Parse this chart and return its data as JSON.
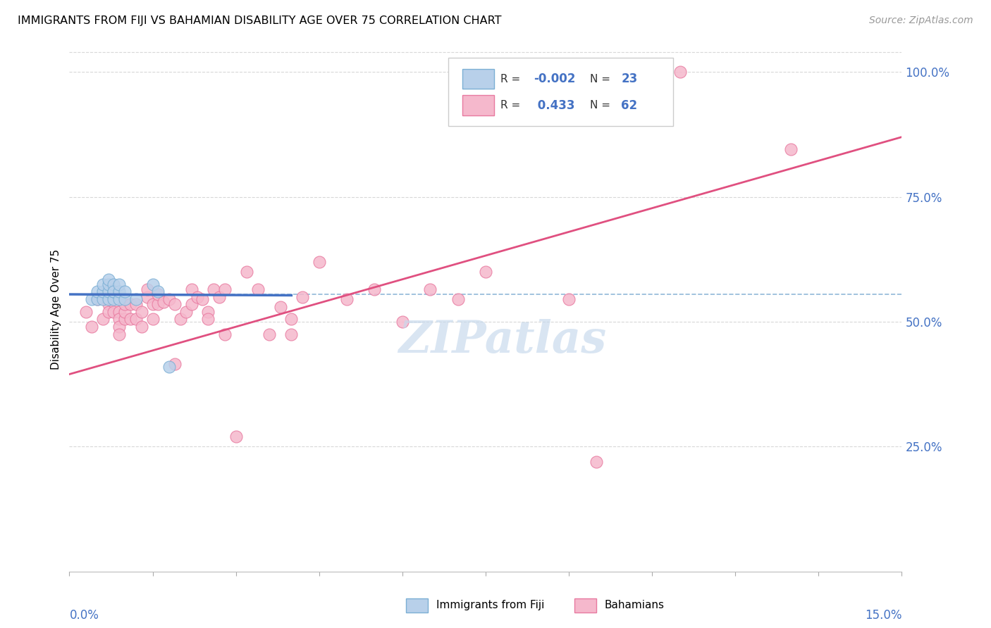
{
  "title": "IMMIGRANTS FROM FIJI VS BAHAMIAN DISABILITY AGE OVER 75 CORRELATION CHART",
  "source": "Source: ZipAtlas.com",
  "ylabel": "Disability Age Over 75",
  "xmin": 0.0,
  "xmax": 0.15,
  "ymin": 0.0,
  "ymax": 1.05,
  "fiji_color": "#b8d0ea",
  "fiji_color_edge": "#7bafd4",
  "bahamas_color": "#f5b8cc",
  "bahamas_color_edge": "#e87aa0",
  "fiji_R": -0.002,
  "fiji_N": 23,
  "bahamas_R": 0.433,
  "bahamas_N": 62,
  "fiji_x": [
    0.004,
    0.005,
    0.005,
    0.006,
    0.006,
    0.006,
    0.007,
    0.007,
    0.007,
    0.007,
    0.008,
    0.008,
    0.008,
    0.008,
    0.009,
    0.009,
    0.009,
    0.01,
    0.01,
    0.012,
    0.015,
    0.016,
    0.018
  ],
  "fiji_y": [
    0.545,
    0.545,
    0.56,
    0.545,
    0.56,
    0.575,
    0.545,
    0.56,
    0.575,
    0.585,
    0.545,
    0.56,
    0.575,
    0.56,
    0.545,
    0.56,
    0.575,
    0.545,
    0.56,
    0.545,
    0.575,
    0.56,
    0.41
  ],
  "bahamas_x": [
    0.003,
    0.004,
    0.005,
    0.006,
    0.007,
    0.007,
    0.008,
    0.008,
    0.009,
    0.009,
    0.009,
    0.009,
    0.01,
    0.01,
    0.01,
    0.011,
    0.011,
    0.012,
    0.012,
    0.013,
    0.013,
    0.014,
    0.014,
    0.015,
    0.015,
    0.016,
    0.016,
    0.017,
    0.018,
    0.019,
    0.019,
    0.02,
    0.021,
    0.022,
    0.022,
    0.023,
    0.024,
    0.025,
    0.025,
    0.026,
    0.027,
    0.028,
    0.028,
    0.03,
    0.032,
    0.034,
    0.036,
    0.038,
    0.04,
    0.04,
    0.042,
    0.045,
    0.05,
    0.055,
    0.06,
    0.065,
    0.07,
    0.075,
    0.09,
    0.095,
    0.11,
    0.13
  ],
  "bahamas_y": [
    0.52,
    0.49,
    0.545,
    0.505,
    0.535,
    0.52,
    0.54,
    0.52,
    0.52,
    0.505,
    0.49,
    0.475,
    0.505,
    0.52,
    0.535,
    0.505,
    0.535,
    0.505,
    0.535,
    0.52,
    0.49,
    0.55,
    0.565,
    0.505,
    0.535,
    0.535,
    0.555,
    0.54,
    0.545,
    0.535,
    0.415,
    0.505,
    0.52,
    0.535,
    0.565,
    0.55,
    0.545,
    0.52,
    0.505,
    0.565,
    0.55,
    0.565,
    0.475,
    0.27,
    0.6,
    0.565,
    0.475,
    0.53,
    0.505,
    0.475,
    0.55,
    0.62,
    0.545,
    0.565,
    0.5,
    0.565,
    0.545,
    0.6,
    0.545,
    0.22,
    1.0,
    0.845
  ],
  "fiji_trend_x": [
    0.0,
    0.04
  ],
  "fiji_trend_y": [
    0.555,
    0.553
  ],
  "bahamas_trend_x": [
    0.0,
    0.15
  ],
  "bahamas_trend_y": [
    0.395,
    0.87
  ],
  "trend_color_fiji": "#4472c4",
  "trend_color_bahamas": "#e05080",
  "dashed_line_y": 0.555,
  "dashed_line_color": "#90b8d8",
  "grid_color": "#d8d8d8",
  "right_axis_color": "#4472c4",
  "watermark_color": "#c5d8ec"
}
